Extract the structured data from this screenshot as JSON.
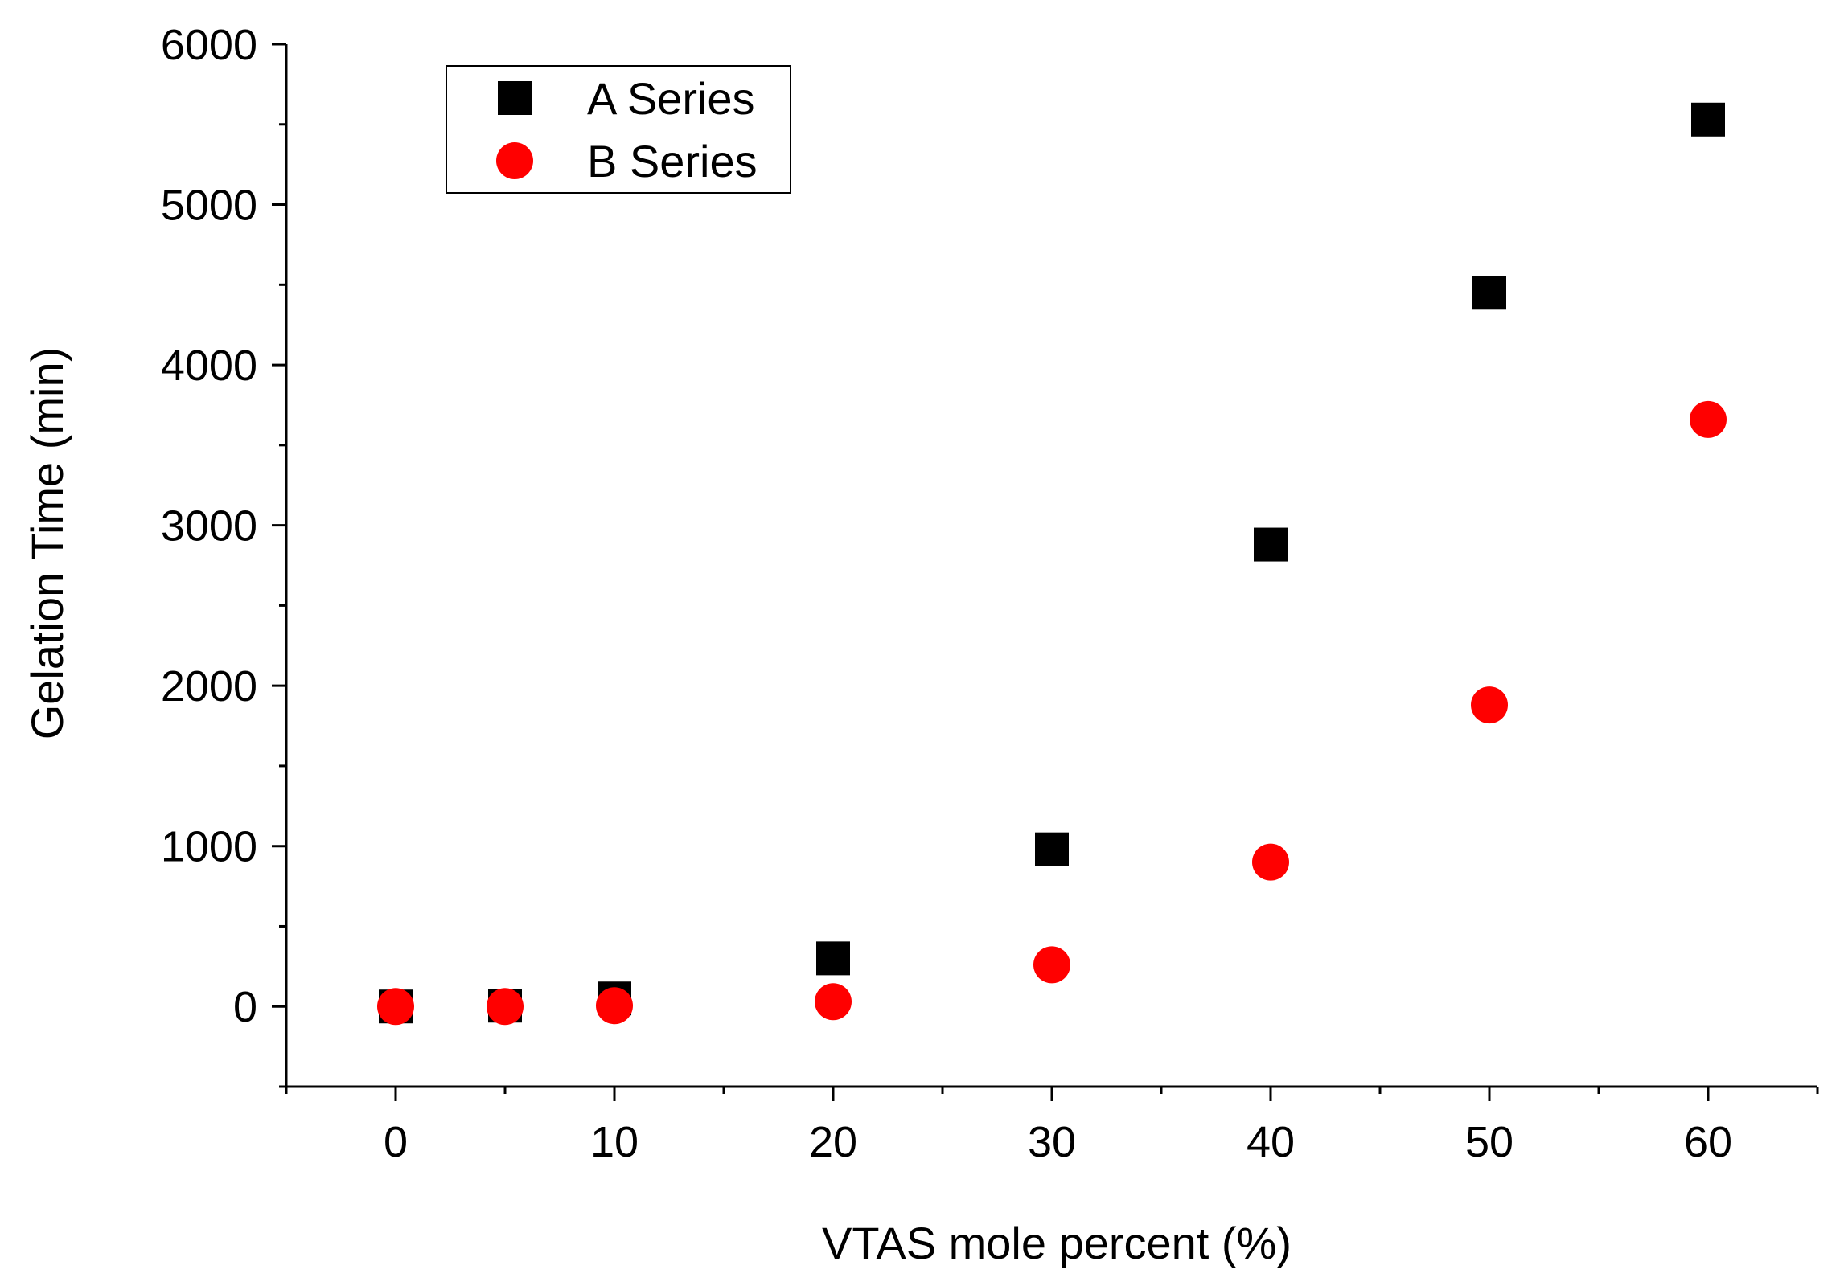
{
  "chart_data": {
    "type": "scatter",
    "title": "",
    "xlabel": "VTAS mole percent (%)",
    "ylabel": "Gelation Time (min)",
    "xlim": [
      -5,
      65
    ],
    "ylim": [
      -500,
      6000
    ],
    "x_ticks": [
      0,
      10,
      20,
      30,
      40,
      50,
      60
    ],
    "y_ticks": [
      0,
      1000,
      2000,
      3000,
      4000,
      5000,
      6000
    ],
    "x_minor_step": 5,
    "y_minor_step": 500,
    "grid": false,
    "legend_position": "top-left",
    "series": [
      {
        "name": "A Series",
        "marker": "square",
        "color": "#000000",
        "x": [
          0,
          5,
          10,
          20,
          30,
          40,
          50,
          60
        ],
        "y": [
          0,
          5,
          50,
          300,
          980,
          2880,
          4450,
          5530
        ]
      },
      {
        "name": "B Series",
        "marker": "circle",
        "color": "#ff0000",
        "x": [
          0,
          5,
          10,
          20,
          30,
          40,
          50,
          60
        ],
        "y": [
          0,
          0,
          5,
          30,
          260,
          900,
          1880,
          3660
        ]
      }
    ]
  }
}
